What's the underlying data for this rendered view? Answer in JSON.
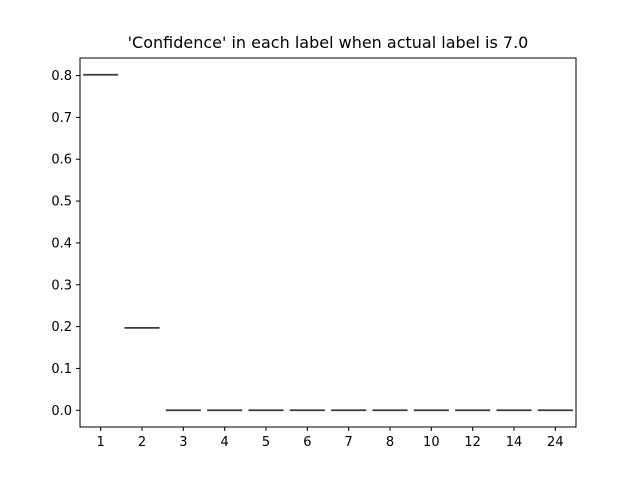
{
  "chart_data": {
    "type": "boxplot",
    "title": "'Confidence' in each label when actual label is 7.0",
    "xlabel": "",
    "ylabel": "",
    "categories": [
      "1",
      "2",
      "3",
      "4",
      "5",
      "6",
      "7",
      "8",
      "10",
      "12",
      "14",
      "24"
    ],
    "values": [
      0.802,
      0.197,
      0.0,
      0.0,
      0.0,
      0.0,
      0.0,
      0.0,
      0.0,
      0.0,
      0.0,
      0.0
    ],
    "ylim": [
      -0.04,
      0.842
    ],
    "yticks": [
      "0.0",
      "0.1",
      "0.2",
      "0.3",
      "0.4",
      "0.5",
      "0.6",
      "0.7",
      "0.8"
    ],
    "grid": false,
    "colors": {
      "median_line": "#3a3a3a",
      "axes": "#000000"
    }
  }
}
